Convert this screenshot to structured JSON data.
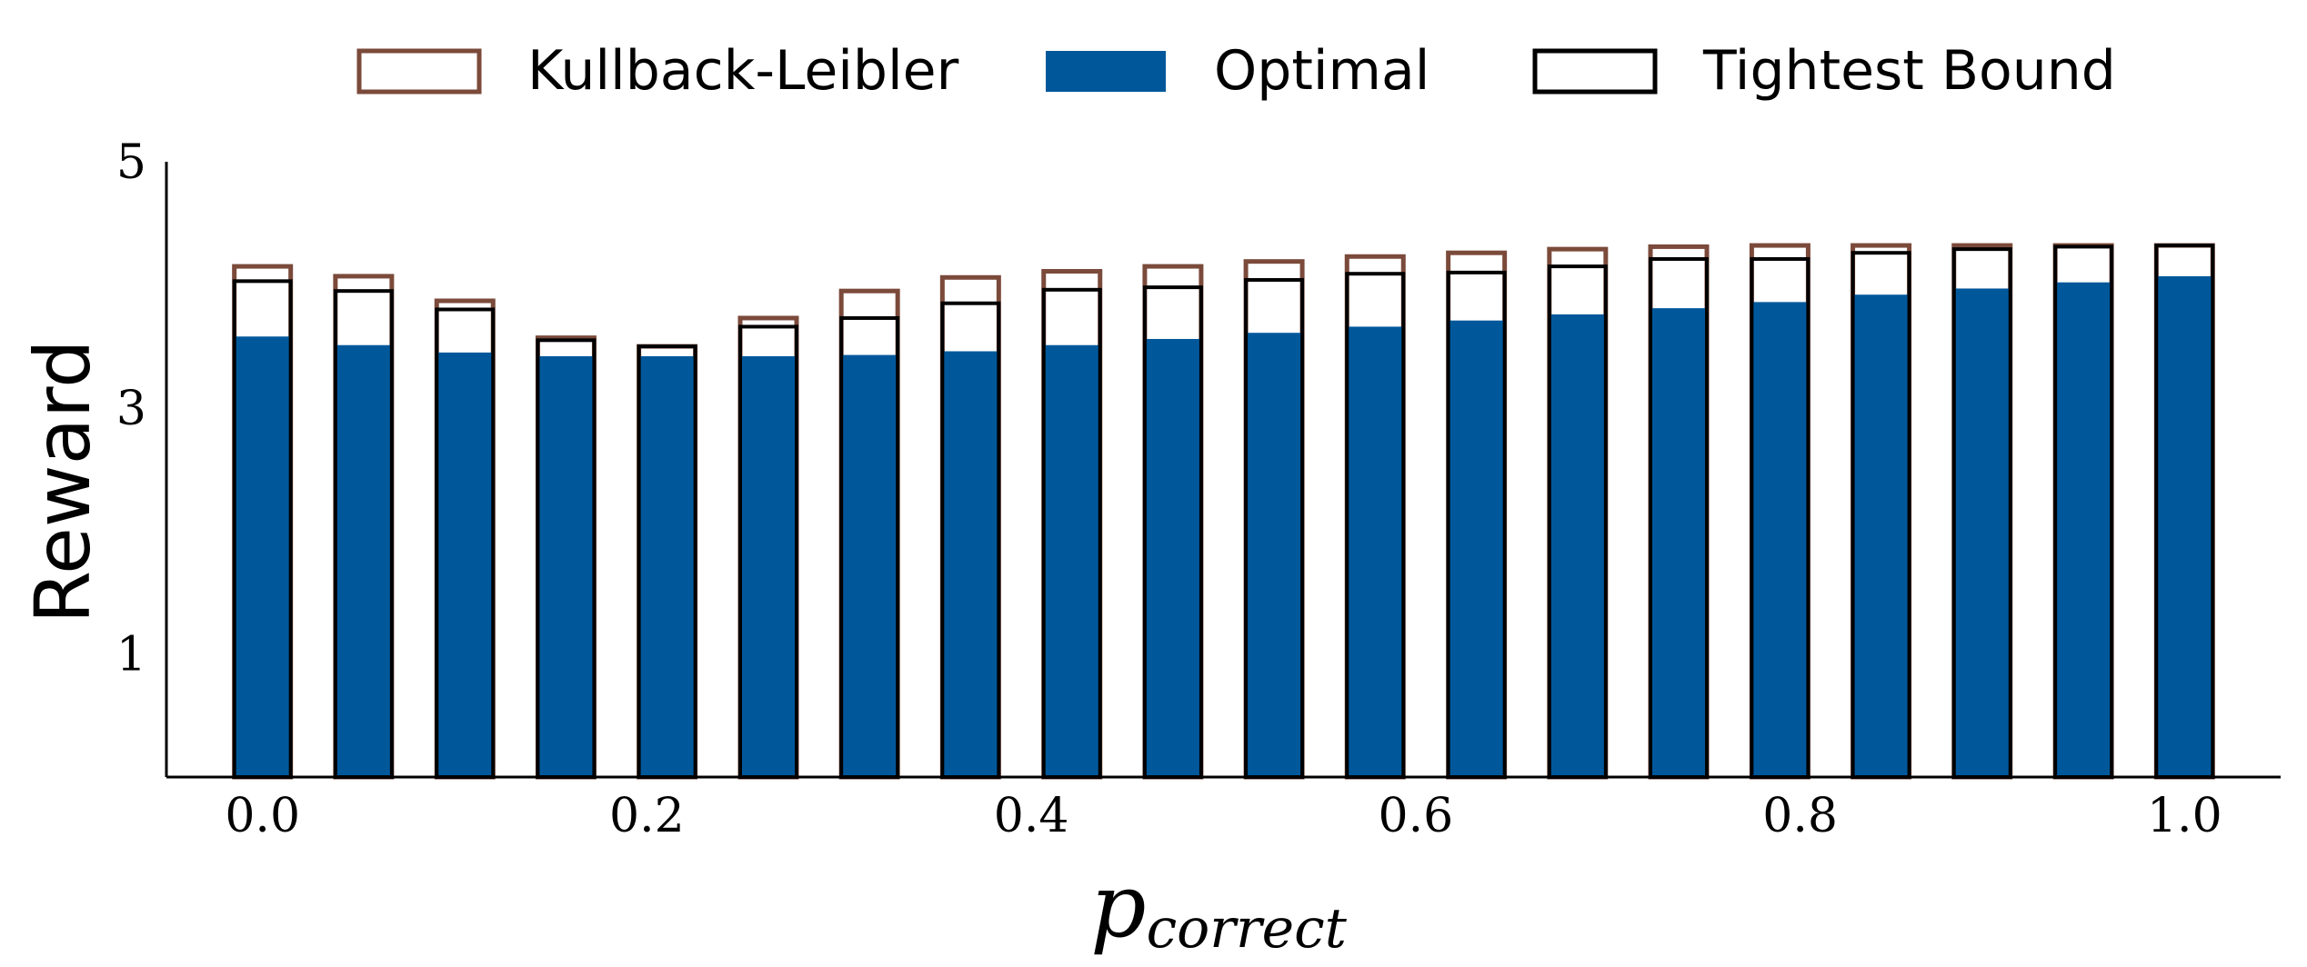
{
  "chart_data": {
    "type": "bar",
    "title": "",
    "xlabel": {
      "main": "p",
      "sub": "correct"
    },
    "ylabel": "Reward",
    "x": [
      0.0,
      0.0526,
      0.1053,
      0.1579,
      0.2105,
      0.2632,
      0.3158,
      0.3684,
      0.4211,
      0.4737,
      0.5263,
      0.5789,
      0.6316,
      0.6842,
      0.7368,
      0.7895,
      0.8421,
      0.8947,
      0.9474,
      1.0
    ],
    "xticks": [
      "0.0",
      "0.2",
      "0.4",
      "0.6",
      "0.8",
      "1.0"
    ],
    "yticks": [
      "1",
      "3",
      "5"
    ],
    "xlim": [
      -0.05,
      1.05
    ],
    "ylim": [
      0,
      5
    ],
    "grid": false,
    "legend_position": "top-center",
    "series": [
      {
        "name": "Kullback-Leibler",
        "style": "outline",
        "color": "#7b4a3a",
        "values": [
          4.15,
          4.07,
          3.87,
          3.57,
          3.5,
          3.73,
          3.95,
          4.06,
          4.11,
          4.15,
          4.19,
          4.23,
          4.26,
          4.29,
          4.31,
          4.32,
          4.32,
          4.32,
          4.32,
          4.32
        ]
      },
      {
        "name": "Optimal",
        "style": "filled",
        "color": "#00589b",
        "values": [
          3.58,
          3.51,
          3.45,
          3.42,
          3.42,
          3.42,
          3.43,
          3.46,
          3.51,
          3.56,
          3.61,
          3.66,
          3.71,
          3.76,
          3.81,
          3.86,
          3.92,
          3.97,
          4.02,
          4.07
        ]
      },
      {
        "name": "Tightest Bound",
        "style": "outline",
        "color": "#000000",
        "values": [
          4.03,
          3.95,
          3.8,
          3.55,
          3.5,
          3.66,
          3.73,
          3.85,
          3.96,
          3.98,
          4.04,
          4.09,
          4.1,
          4.15,
          4.21,
          4.21,
          4.26,
          4.29,
          4.31,
          4.32
        ]
      }
    ]
  }
}
